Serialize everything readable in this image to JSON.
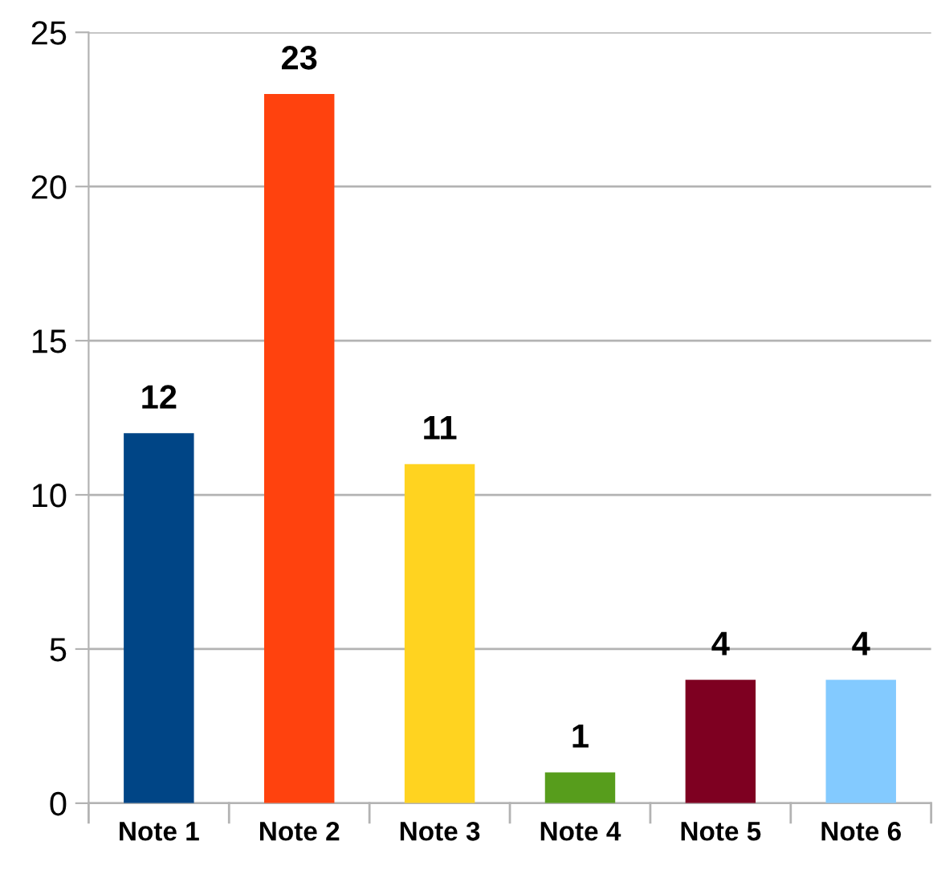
{
  "chart_data": {
    "type": "bar",
    "categories": [
      "Note 1",
      "Note 2",
      "Note 3",
      "Note 4",
      "Note 5",
      "Note 6"
    ],
    "values": [
      12,
      23,
      11,
      1,
      4,
      4
    ],
    "colors": [
      "#004586",
      "#ff420e",
      "#ffd320",
      "#579d1c",
      "#7e0021",
      "#83caff"
    ],
    "ylim": [
      0,
      25
    ],
    "yticks": [
      0,
      5,
      10,
      15,
      20,
      25
    ],
    "grid": "y",
    "data_labels": true,
    "legend": false
  }
}
